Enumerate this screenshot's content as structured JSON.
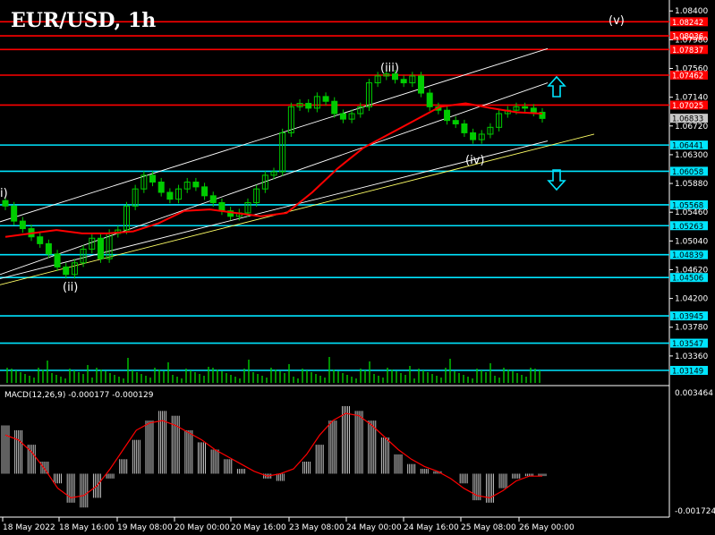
{
  "window": {
    "title": "EUR/USD, 1h"
  },
  "chart_data": {
    "type": "candlestick",
    "title": "EUR/USD, 1h",
    "price_axis": {
      "range": [
        1.0294,
        1.0856
      ],
      "ticks": [
        "1.08400",
        "1.07980",
        "1.07560",
        "1.07140",
        "1.06720",
        "1.06300",
        "1.05880",
        "1.05460",
        "1.05040",
        "1.04620",
        "1.04200",
        "1.03780",
        "1.03360"
      ]
    },
    "last_price": "1.06833",
    "resistance_levels": [
      "1.08242",
      "1.08036",
      "1.07837",
      "1.07462",
      "1.07025"
    ],
    "support_levels": [
      "1.06441",
      "1.06058",
      "1.05568",
      "1.05263",
      "1.04839",
      "1.04506",
      "1.03945",
      "1.03547",
      "1.03149"
    ],
    "time_labels": [
      "18 May 2022",
      "18 May 16:00",
      "19 May 08:00",
      "20 May 00:00",
      "20 May 16:00",
      "23 May 08:00",
      "24 May 00:00",
      "24 May 16:00",
      "25 May 08:00",
      "26 May 00:00"
    ],
    "close_series": [
      1.0555,
      1.0533,
      1.0522,
      1.051,
      1.05,
      1.0485,
      1.0466,
      1.0455,
      1.0472,
      1.0492,
      1.0508,
      1.0478,
      1.0515,
      1.052,
      1.0555,
      1.058,
      1.06,
      1.059,
      1.0575,
      1.0565,
      1.058,
      1.059,
      1.0583,
      1.057,
      1.056,
      1.0548,
      1.054,
      1.0545,
      1.056,
      1.058,
      1.06,
      1.0605,
      1.0662,
      1.07,
      1.0705,
      1.0698,
      1.0715,
      1.0708,
      1.069,
      1.0682,
      1.069,
      1.07,
      1.0735,
      1.0745,
      1.0748,
      1.074,
      1.0735,
      1.0745,
      1.072,
      1.07,
      1.0695,
      1.068,
      1.0675,
      1.0662,
      1.0652,
      1.066,
      1.067,
      1.069,
      1.0695,
      1.07,
      1.0698,
      1.0692,
      1.0683
    ],
    "moving_average": [
      1.051,
      1.0515,
      1.052,
      1.0515,
      1.0515,
      1.0518,
      1.053,
      1.0548,
      1.055,
      1.0545,
      1.054,
      1.0545,
      1.0575,
      1.061,
      1.064,
      1.066,
      1.068,
      1.07,
      1.0705,
      1.0698,
      1.0692,
      1.069
    ],
    "wave_labels": [
      "i)",
      "(ii)",
      "(iii)",
      "(iv)",
      "(v)"
    ],
    "indicator": {
      "name": "MACD(12,26,9)",
      "values": "-0.000177 -0.000129",
      "axis_labels": [
        "0.003464",
        "-0.001724"
      ],
      "range": [
        -0.001724,
        0.003464
      ],
      "histogram": [
        0.002,
        0.0018,
        0.0012,
        0.0005,
        -0.0004,
        -0.0012,
        -0.0014,
        -0.001,
        -0.0002,
        0.0006,
        0.0014,
        0.0022,
        0.0026,
        0.0024,
        0.0018,
        0.0013,
        0.001,
        0.0006,
        0.0002,
        0.0,
        -0.0002,
        -0.0003,
        0.0,
        0.0005,
        0.0012,
        0.0022,
        0.0028,
        0.0026,
        0.0022,
        0.0015,
        0.0008,
        0.0004,
        0.0002,
        0.0001,
        0.0,
        -0.0004,
        -0.0011,
        -0.0012,
        -0.0006,
        -0.0002,
        -0.0001,
        -0.0001
      ],
      "signal": [
        0.0016,
        0.0014,
        0.0009,
        0.0002,
        -0.0006,
        -0.001,
        -0.0009,
        -0.0005,
        0.0002,
        0.001,
        0.0018,
        0.0021,
        0.0022,
        0.002,
        0.0017,
        0.0014,
        0.001,
        0.0007,
        0.0004,
        0.0001,
        -0.0001,
        0.0,
        0.0002,
        0.0008,
        0.0016,
        0.0022,
        0.0025,
        0.0024,
        0.002,
        0.0015,
        0.001,
        0.0006,
        0.0003,
        0.0001,
        -0.0002,
        -0.0006,
        -0.0009,
        -0.001,
        -0.0007,
        -0.0003,
        -0.0001,
        -0.0001
      ]
    },
    "arrows": [
      "up",
      "down"
    ],
    "colors": {
      "candle": "#00cc00",
      "ma": "#ff0000",
      "resistance": "#ff0000",
      "support": "#00e5ff",
      "macd_hist": "#c0c0c0",
      "macd_signal": "#ff0000",
      "channel": "#ffffff",
      "trendline": "#ffff66",
      "arrow": "#00e5ff"
    }
  }
}
